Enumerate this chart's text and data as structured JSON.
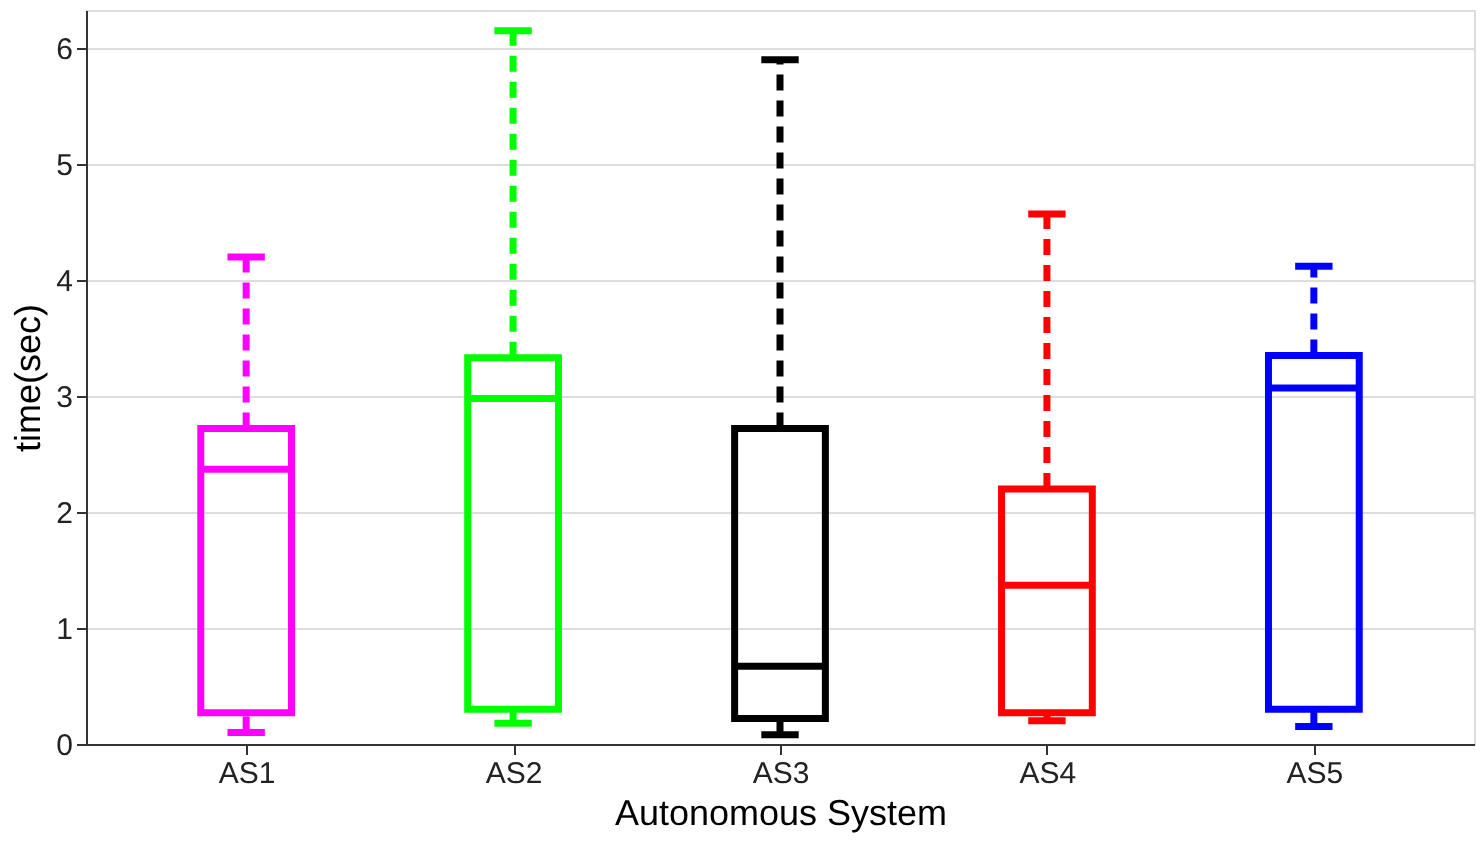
{
  "chart_data": {
    "type": "box",
    "xlabel": "Autonomous System",
    "ylabel": "time(sec)",
    "categories": [
      "AS1",
      "AS2",
      "AS3",
      "AS4",
      "AS5"
    ],
    "colors": [
      "#ff00ff",
      "#00ff00",
      "#000000",
      "#ff0000",
      "#0000ff"
    ],
    "boxes": [
      {
        "low": 0.1,
        "q1": 0.27,
        "median": 2.37,
        "q3": 2.72,
        "high": 4.2
      },
      {
        "low": 0.18,
        "q1": 0.3,
        "median": 2.98,
        "q3": 3.33,
        "high": 6.15
      },
      {
        "low": 0.08,
        "q1": 0.22,
        "median": 0.67,
        "q3": 2.72,
        "high": 5.9
      },
      {
        "low": 0.2,
        "q1": 0.27,
        "median": 1.37,
        "q3": 2.2,
        "high": 4.57
      },
      {
        "low": 0.15,
        "q1": 0.3,
        "median": 3.07,
        "q3": 3.35,
        "high": 4.12
      }
    ],
    "ylim": [
      0,
      6.33
    ],
    "yticks": [
      0,
      1,
      2,
      3,
      4,
      5,
      6
    ],
    "grid": "y",
    "line_style": "dashed"
  }
}
